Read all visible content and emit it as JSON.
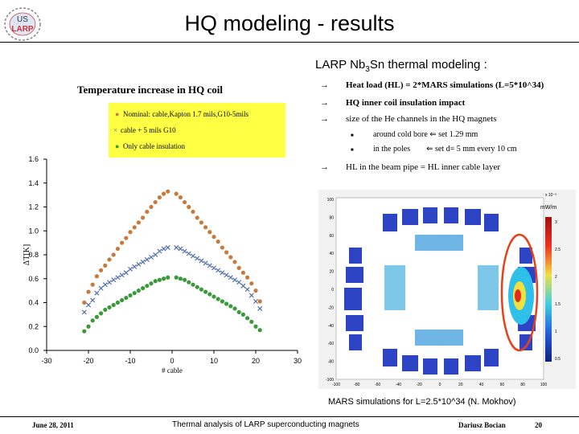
{
  "logo": {
    "line1": "US",
    "line2": "LARP"
  },
  "slide": {
    "title": "HQ modeling - results",
    "subtitle_pre": "LARP Nb",
    "subtitle_sub": "3",
    "subtitle_post": "Sn thermal modeling :"
  },
  "bullets": {
    "b1": "Heat load (HL) = 2*MARS simulations (L=5*10^34)",
    "b2": "HQ inner coil insulation impact",
    "b3": "size of the He channels in the HQ magnets",
    "b3a": "around cold bore ⇐ set 1.29 mm",
    "b3b": "in the poles        ⇐ set d= 5 mm every 10 cm",
    "b4": "HL in the beam pipe = HL inner cable layer"
  },
  "chart_data": {
    "type": "scatter",
    "title": "Temperature increase in HQ coil",
    "xlabel": "# cable",
    "ylabel": "ΔT[K]",
    "xlim": [
      -30,
      30
    ],
    "ylim": [
      0.0,
      1.6
    ],
    "xticks": [
      "-30",
      "-20",
      "-10",
      "0",
      "10",
      "20",
      "30"
    ],
    "yticks": [
      "0.0",
      "0.2",
      "0.4",
      "0.6",
      "0.8",
      "1.0",
      "1.2",
      "1.4",
      "1.6"
    ],
    "legend_position": "top",
    "series": [
      {
        "name": "Nominal: cable,Kapton 1.7 mils,G10-5mils",
        "color": "#c87a3c",
        "marker": "circle",
        "x": [
          -21,
          -20,
          -19,
          -18,
          -17,
          -16,
          -15,
          -14,
          -13,
          -12,
          -11,
          -10,
          -9,
          -8,
          -7,
          -6,
          -5,
          -4,
          -3,
          -2,
          -1,
          1,
          2,
          3,
          4,
          5,
          6,
          7,
          8,
          9,
          10,
          11,
          12,
          13,
          14,
          15,
          16,
          17,
          18,
          19,
          20,
          21
        ],
        "y": [
          0.4,
          0.49,
          0.55,
          0.62,
          0.67,
          0.71,
          0.76,
          0.8,
          0.85,
          0.9,
          0.94,
          0.99,
          1.03,
          1.07,
          1.11,
          1.16,
          1.2,
          1.24,
          1.28,
          1.31,
          1.33,
          1.31,
          1.28,
          1.24,
          1.2,
          1.16,
          1.11,
          1.07,
          1.03,
          0.99,
          0.95,
          0.91,
          0.86,
          0.82,
          0.78,
          0.74,
          0.69,
          0.65,
          0.61,
          0.56,
          0.5,
          0.41
        ]
      },
      {
        "name": "cable + 5 mils G10",
        "color": "#4f6fa8",
        "marker": "x",
        "x": [
          -21,
          -20,
          -19,
          -18,
          -17,
          -16,
          -15,
          -14,
          -13,
          -12,
          -11,
          -10,
          -9,
          -8,
          -7,
          -6,
          -5,
          -4,
          -3,
          -2,
          -1,
          1,
          2,
          3,
          4,
          5,
          6,
          7,
          8,
          9,
          10,
          11,
          12,
          13,
          14,
          15,
          16,
          17,
          18,
          19,
          20,
          21
        ],
        "y": [
          0.32,
          0.38,
          0.42,
          0.48,
          0.52,
          0.55,
          0.57,
          0.59,
          0.61,
          0.63,
          0.65,
          0.68,
          0.7,
          0.72,
          0.74,
          0.76,
          0.78,
          0.8,
          0.83,
          0.85,
          0.86,
          0.86,
          0.85,
          0.83,
          0.81,
          0.79,
          0.77,
          0.75,
          0.73,
          0.71,
          0.69,
          0.67,
          0.65,
          0.63,
          0.61,
          0.59,
          0.57,
          0.54,
          0.51,
          0.46,
          0.41,
          0.35
        ]
      },
      {
        "name": "Only cable insulation",
        "color": "#3a9a3a",
        "marker": "circle",
        "x": [
          -21,
          -20,
          -19,
          -18,
          -17,
          -16,
          -15,
          -14,
          -13,
          -12,
          -11,
          -10,
          -9,
          -8,
          -7,
          -6,
          -5,
          -4,
          -3,
          -2,
          -1,
          1,
          2,
          3,
          4,
          5,
          6,
          7,
          8,
          9,
          10,
          11,
          12,
          13,
          14,
          15,
          16,
          17,
          18,
          19,
          20,
          21
        ],
        "y": [
          0.16,
          0.2,
          0.25,
          0.28,
          0.31,
          0.34,
          0.36,
          0.38,
          0.4,
          0.42,
          0.44,
          0.46,
          0.48,
          0.5,
          0.52,
          0.54,
          0.56,
          0.58,
          0.59,
          0.6,
          0.61,
          0.61,
          0.6,
          0.59,
          0.57,
          0.55,
          0.53,
          0.51,
          0.49,
          0.47,
          0.45,
          0.43,
          0.41,
          0.39,
          0.37,
          0.35,
          0.32,
          0.3,
          0.27,
          0.24,
          0.2,
          0.17
        ]
      }
    ]
  },
  "simulation": {
    "unit": "mW/m",
    "xticks": [
      "-100",
      "-80",
      "-60",
      "-40",
      "-20",
      "0",
      "20",
      "40",
      "60",
      "80",
      "100"
    ],
    "yticks": [
      "100",
      "80",
      "60",
      "40",
      "20",
      "0",
      "-20",
      "-40",
      "-60",
      "-80",
      "-100"
    ],
    "scale_exp": "x 10⁻³",
    "colorbar_ticks": [
      "3",
      "2.5",
      "2",
      "1.5",
      "1",
      "0.5"
    ],
    "caption": "MARS simulations for L=2.5*10^34 (N. Mokhov)"
  },
  "footer": {
    "date": "June 28, 2011",
    "text": "Thermal analysis of LARP superconducting magnets",
    "author": "Dariusz Bocian",
    "page": "20"
  }
}
